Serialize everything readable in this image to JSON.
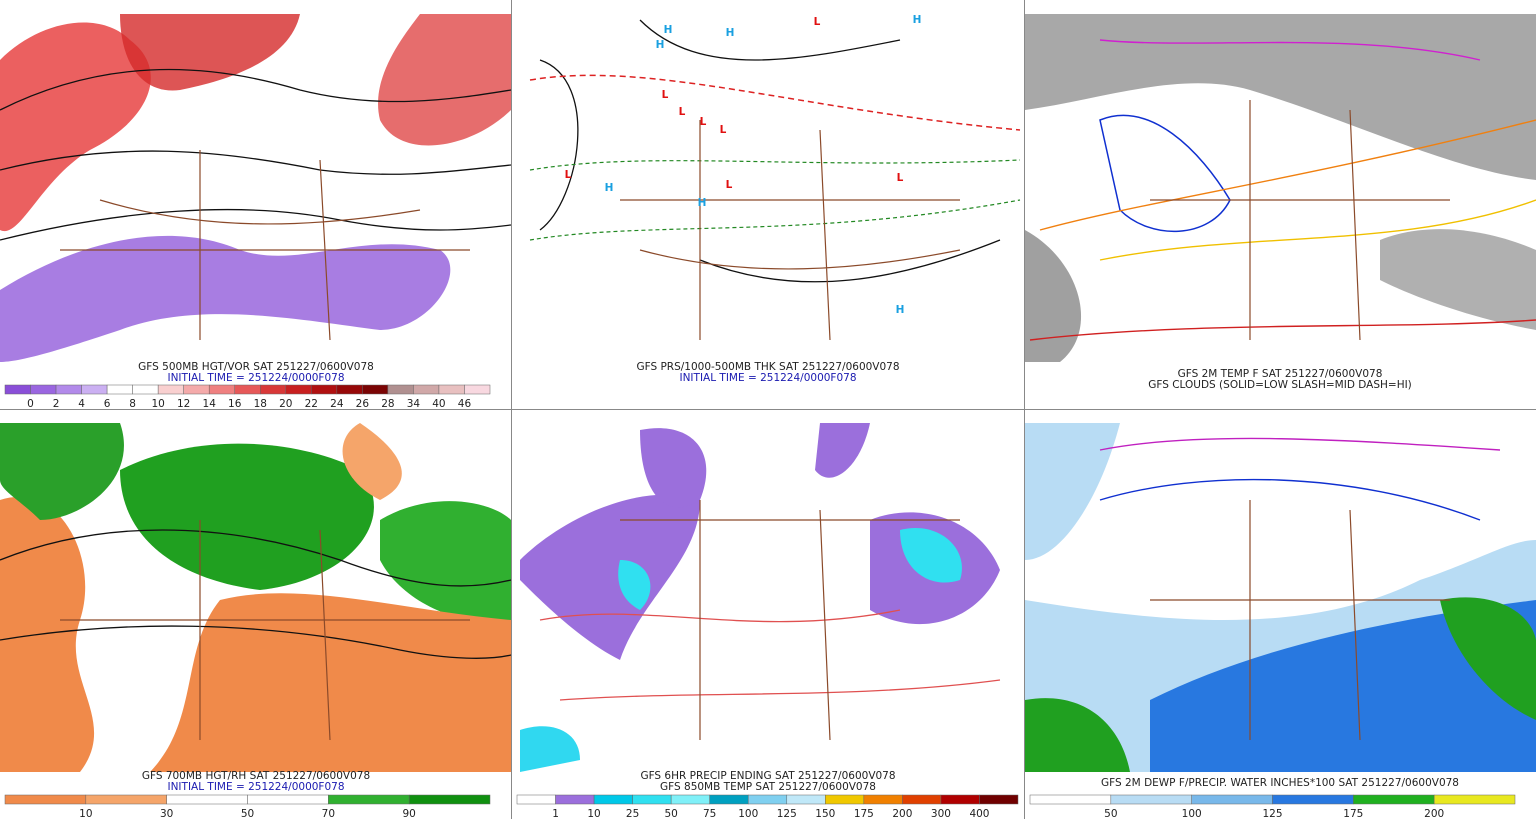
{
  "panels": [
    {
      "captions": [
        "GFS 500MB HGT/VOR SAT 251227/0600V078",
        "INITIAL TIME = 251224/0000F078"
      ],
      "colorbar": {
        "labels": [
          "0",
          "2",
          "4",
          "6",
          "8",
          "10",
          "12",
          "14",
          "16",
          "18",
          "20",
          "22",
          "24",
          "26",
          "28",
          "34",
          "40",
          "46"
        ],
        "colors": [
          "#8a4fd8",
          "#9a66e0",
          "#b28aea",
          "#cbb0f2",
          "#ffffff",
          "#ffffff",
          "#f9d0d0",
          "#f4aaaa",
          "#ef8080",
          "#e65858",
          "#d83838",
          "#c82020",
          "#b01010",
          "#960808",
          "#7a0404",
          "#b09090",
          "#d0a8a8",
          "#e8c0c0",
          "#f8d8e0"
        ]
      }
    },
    {
      "captions": [
        "GFS PRS/1000-500MB THK SAT 251227/0600V078",
        "INITIAL TIME = 251224/0000F078"
      ],
      "markers": [
        "H",
        "H",
        "L",
        "H",
        "H",
        "L",
        "L",
        "L",
        "L",
        "L",
        "H",
        "L",
        "H",
        "L",
        "H"
      ]
    },
    {
      "captions": [
        "GFS 2M TEMP F SAT 251227/0600V078",
        "GFS CLOUDS (SOLID=LOW SLASH=MID DASH=HI)"
      ]
    },
    {
      "captions": [
        "GFS 700MB HGT/RH SAT 251227/0600V078",
        "INITIAL TIME = 251224/0000F078"
      ],
      "colorbar": {
        "labels": [
          "10",
          "30",
          "50",
          "70",
          "90"
        ],
        "colors": [
          "#f08a4a",
          "#f5a56a",
          "#ffffff",
          "#ffffff",
          "#30b030",
          "#109010"
        ]
      }
    },
    {
      "captions": [
        "GFS 6HR PRECIP ENDING SAT 251227/0600V078",
        "GFS 850MB TEMP SAT 251227/0600V078"
      ],
      "colorbar": {
        "labels": [
          "1",
          "10",
          "25",
          "50",
          "75",
          "100",
          "125",
          "150",
          "175",
          "200",
          "300",
          "400"
        ],
        "colors": [
          "#ffffff",
          "#9b6fdc",
          "#00c8e8",
          "#30e0f0",
          "#80f0f8",
          "#00a0c0",
          "#80d0f0",
          "#c0e8f8",
          "#f0c800",
          "#f08000",
          "#e04000",
          "#b00000",
          "#700000"
        ]
      }
    },
    {
      "captions": [
        "GFS 2M DEWP F/PRECIP. WATER INCHES*100 SAT 251227/0600V078"
      ],
      "colorbar": {
        "labels": [
          "50",
          "100",
          "125",
          "175",
          "200"
        ],
        "colors": [
          "#ffffff",
          "#b8dcf4",
          "#78b8ea",
          "#2878e0",
          "#20b020",
          "#e8e820"
        ]
      }
    }
  ]
}
